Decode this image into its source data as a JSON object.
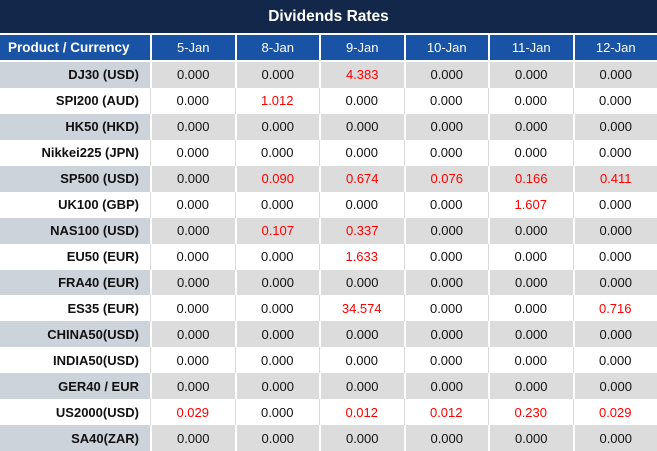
{
  "title": "Dividends Rates",
  "header": {
    "product_column": "Product / Currency",
    "dates": [
      "5-Jan",
      "8-Jan",
      "9-Jan",
      "10-Jan",
      "11-Jan",
      "12-Jan"
    ]
  },
  "rows": [
    {
      "label": "DJ30 (USD)",
      "values": [
        "0.000",
        "0.000",
        "4.383",
        "0.000",
        "0.000",
        "0.000"
      ]
    },
    {
      "label": "SPI200 (AUD)",
      "values": [
        "0.000",
        "1.012",
        "0.000",
        "0.000",
        "0.000",
        "0.000"
      ]
    },
    {
      "label": "HK50 (HKD)",
      "values": [
        "0.000",
        "0.000",
        "0.000",
        "0.000",
        "0.000",
        "0.000"
      ]
    },
    {
      "label": "Nikkei225 (JPN)",
      "values": [
        "0.000",
        "0.000",
        "0.000",
        "0.000",
        "0.000",
        "0.000"
      ]
    },
    {
      "label": "SP500 (USD)",
      "values": [
        "0.000",
        "0.090",
        "0.674",
        "0.076",
        "0.166",
        "0.411"
      ]
    },
    {
      "label": "UK100 (GBP)",
      "values": [
        "0.000",
        "0.000",
        "0.000",
        "0.000",
        "1.607",
        "0.000"
      ]
    },
    {
      "label": "NAS100 (USD)",
      "values": [
        "0.000",
        "0.107",
        "0.337",
        "0.000",
        "0.000",
        "0.000"
      ]
    },
    {
      "label": "EU50 (EUR)",
      "values": [
        "0.000",
        "0.000",
        "1.633",
        "0.000",
        "0.000",
        "0.000"
      ]
    },
    {
      "label": "FRA40 (EUR)",
      "values": [
        "0.000",
        "0.000",
        "0.000",
        "0.000",
        "0.000",
        "0.000"
      ]
    },
    {
      "label": "ES35 (EUR)",
      "values": [
        "0.000",
        "0.000",
        "34.574",
        "0.000",
        "0.000",
        "0.716"
      ]
    },
    {
      "label": "CHINA50(USD)",
      "values": [
        "0.000",
        "0.000",
        "0.000",
        "0.000",
        "0.000",
        "0.000"
      ]
    },
    {
      "label": "INDIA50(USD)",
      "values": [
        "0.000",
        "0.000",
        "0.000",
        "0.000",
        "0.000",
        "0.000"
      ]
    },
    {
      "label": "GER40 / EUR",
      "values": [
        "0.000",
        "0.000",
        "0.000",
        "0.000",
        "0.000",
        "0.000"
      ]
    },
    {
      "label": "US2000(USD)",
      "values": [
        "0.029",
        "0.000",
        "0.012",
        "0.012",
        "0.230",
        "0.029"
      ]
    },
    {
      "label": "SA40(ZAR)",
      "values": [
        "0.000",
        "0.000",
        "0.000",
        "0.000",
        "0.000",
        "0.000"
      ]
    }
  ],
  "colors": {
    "title_bar_bg": "#13274a",
    "header_bg": "#1853a6",
    "header_text": "#ffffff",
    "stripe_label_bg": "#cdd3da",
    "stripe_data_bg": "#dcdcdc",
    "value_text": "#111111",
    "nonzero_value_text": "#fe0000"
  },
  "chart_data": {
    "type": "table",
    "title": "Dividends Rates",
    "columns": [
      "Product / Currency",
      "5-Jan",
      "8-Jan",
      "9-Jan",
      "10-Jan",
      "11-Jan",
      "12-Jan"
    ],
    "rows": [
      [
        "DJ30 (USD)",
        0.0,
        0.0,
        4.383,
        0.0,
        0.0,
        0.0
      ],
      [
        "SPI200 (AUD)",
        0.0,
        1.012,
        0.0,
        0.0,
        0.0,
        0.0
      ],
      [
        "HK50 (HKD)",
        0.0,
        0.0,
        0.0,
        0.0,
        0.0,
        0.0
      ],
      [
        "Nikkei225 (JPN)",
        0.0,
        0.0,
        0.0,
        0.0,
        0.0,
        0.0
      ],
      [
        "SP500 (USD)",
        0.0,
        0.09,
        0.674,
        0.076,
        0.166,
        0.411
      ],
      [
        "UK100 (GBP)",
        0.0,
        0.0,
        0.0,
        0.0,
        1.607,
        0.0
      ],
      [
        "NAS100 (USD)",
        0.0,
        0.107,
        0.337,
        0.0,
        0.0,
        0.0
      ],
      [
        "EU50 (EUR)",
        0.0,
        0.0,
        1.633,
        0.0,
        0.0,
        0.0
      ],
      [
        "FRA40 (EUR)",
        0.0,
        0.0,
        0.0,
        0.0,
        0.0,
        0.0
      ],
      [
        "ES35 (EUR)",
        0.0,
        0.0,
        34.574,
        0.0,
        0.0,
        0.716
      ],
      [
        "CHINA50(USD)",
        0.0,
        0.0,
        0.0,
        0.0,
        0.0,
        0.0
      ],
      [
        "INDIA50(USD)",
        0.0,
        0.0,
        0.0,
        0.0,
        0.0,
        0.0
      ],
      [
        "GER40 / EUR",
        0.0,
        0.0,
        0.0,
        0.0,
        0.0,
        0.0
      ],
      [
        "US2000(USD)",
        0.029,
        0.0,
        0.012,
        0.012,
        0.23,
        0.029
      ],
      [
        "SA40(ZAR)",
        0.0,
        0.0,
        0.0,
        0.0,
        0.0,
        0.0
      ]
    ],
    "notes": "Non-zero dividend values are rendered in red; zero values in black. Rows alternate gray/white striping starting with gray."
  }
}
